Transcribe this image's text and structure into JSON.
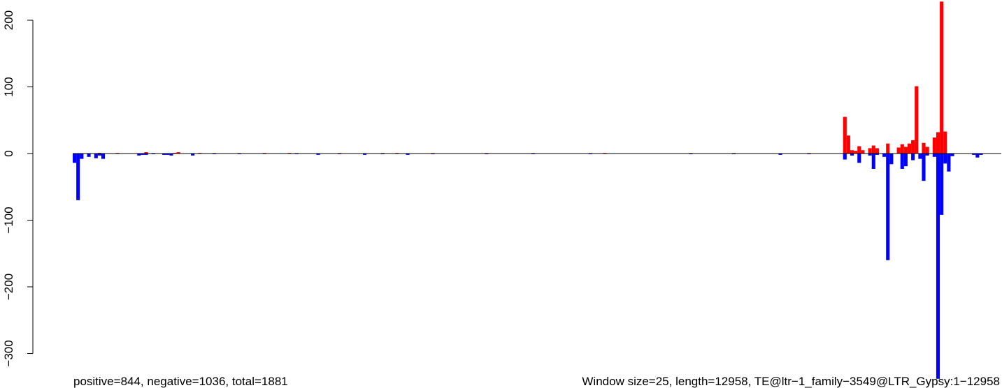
{
  "chart_data": {
    "type": "bar",
    "title": "",
    "xlabel": "",
    "ylabel": "",
    "ylim": [
      -338,
      230
    ],
    "y_ticks": [
      "200",
      "100",
      "0",
      "−100",
      "−200",
      "−300"
    ],
    "y_tick_values": [
      200,
      100,
      0,
      -100,
      -200,
      -300
    ],
    "x_range": [
      0,
      12958
    ],
    "zero_line": true,
    "grid": false,
    "legend": "none",
    "colors": {
      "positive": "#ff0000",
      "negative": "#0000ff",
      "baseline": "#000000"
    },
    "series": [
      {
        "name": "positive",
        "points": [
          [
            375,
            1
          ],
          [
            625,
            1
          ],
          [
            1025,
            2
          ],
          [
            1425,
            1
          ],
          [
            1475,
            2
          ],
          [
            1775,
            1
          ],
          [
            2675,
            1
          ],
          [
            3025,
            1
          ],
          [
            4525,
            1
          ],
          [
            7425,
            1
          ],
          [
            10775,
            55
          ],
          [
            10825,
            27
          ],
          [
            10875,
            5
          ],
          [
            10925,
            4
          ],
          [
            10975,
            11
          ],
          [
            11025,
            5
          ],
          [
            11125,
            8
          ],
          [
            11175,
            12
          ],
          [
            11225,
            8
          ],
          [
            11375,
            15
          ],
          [
            11525,
            9
          ],
          [
            11575,
            14
          ],
          [
            11625,
            10
          ],
          [
            11675,
            15
          ],
          [
            11725,
            20
          ],
          [
            11775,
            101
          ],
          [
            11875,
            16
          ],
          [
            11925,
            10
          ],
          [
            12025,
            24
          ],
          [
            12075,
            32
          ],
          [
            12125,
            228
          ],
          [
            12175,
            33
          ]
        ]
      },
      {
        "name": "negative",
        "points": [
          [
            25,
            -14
          ],
          [
            75,
            -70
          ],
          [
            125,
            -8
          ],
          [
            225,
            -5
          ],
          [
            325,
            -7
          ],
          [
            375,
            -3
          ],
          [
            425,
            -8
          ],
          [
            925,
            -3
          ],
          [
            975,
            -2
          ],
          [
            1025,
            -2
          ],
          [
            1125,
            -1
          ],
          [
            1275,
            -2
          ],
          [
            1325,
            -2
          ],
          [
            1375,
            -3
          ],
          [
            1675,
            -3
          ],
          [
            1975,
            -1
          ],
          [
            2325,
            -1
          ],
          [
            3125,
            -1
          ],
          [
            3425,
            -2
          ],
          [
            3725,
            -1
          ],
          [
            4075,
            -2
          ],
          [
            4325,
            -1
          ],
          [
            4675,
            -2
          ],
          [
            5025,
            -1
          ],
          [
            5775,
            -1
          ],
          [
            6425,
            -1
          ],
          [
            7225,
            -1
          ],
          [
            8625,
            -1
          ],
          [
            9225,
            -1
          ],
          [
            9875,
            -2
          ],
          [
            10275,
            -1
          ],
          [
            10775,
            -9
          ],
          [
            10875,
            -3
          ],
          [
            10975,
            -14
          ],
          [
            11125,
            -3
          ],
          [
            11175,
            -23
          ],
          [
            11225,
            -2
          ],
          [
            11325,
            -5
          ],
          [
            11375,
            -160
          ],
          [
            11425,
            -16
          ],
          [
            11575,
            -23
          ],
          [
            11625,
            -19
          ],
          [
            11725,
            -10
          ],
          [
            11825,
            -8
          ],
          [
            11875,
            -41
          ],
          [
            11925,
            -3
          ],
          [
            12025,
            -5
          ],
          [
            12075,
            -338
          ],
          [
            12125,
            -92
          ],
          [
            12175,
            -15
          ],
          [
            12225,
            -27
          ],
          [
            12275,
            -4
          ],
          [
            12575,
            -2
          ],
          [
            12625,
            -6
          ],
          [
            12675,
            -2
          ]
        ]
      }
    ]
  },
  "captions": {
    "counts": "positive=844, negative=1036, total=1881",
    "window": "Window size=25, length=12958, TE@ltr−1_family−3549@LTR_Gypsy:1−12958"
  }
}
